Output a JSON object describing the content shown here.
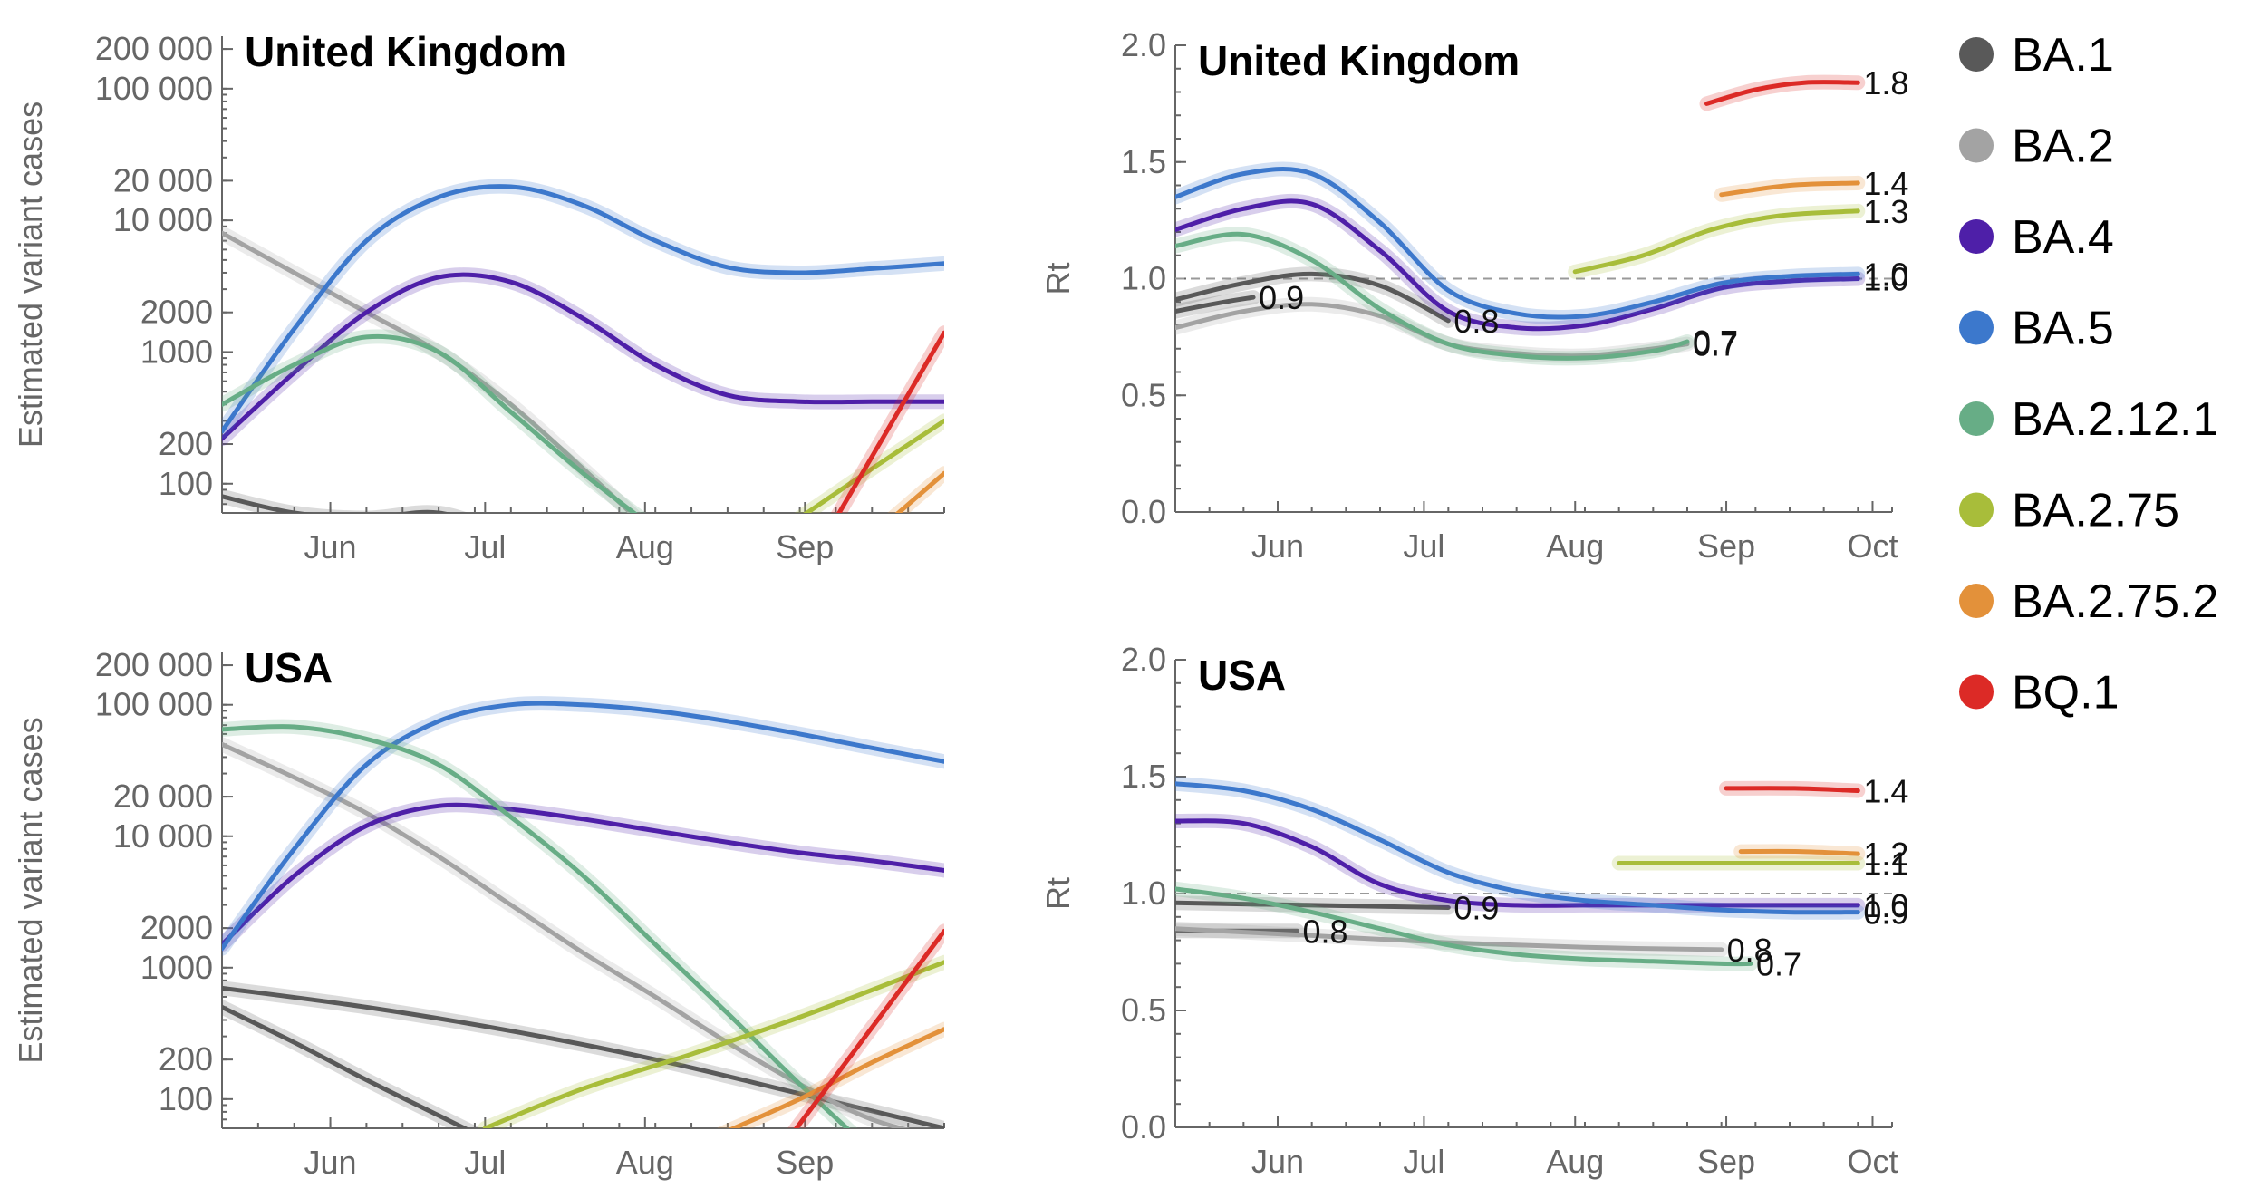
{
  "legend": [
    {
      "label": "BA.1",
      "color": "#595959"
    },
    {
      "label": "BA.2",
      "color": "#a3a3a3"
    },
    {
      "label": "BA.4",
      "color": "#4e1fa8"
    },
    {
      "label": "BA.5",
      "color": "#3c78cc"
    },
    {
      "label": "BA.2.12.1",
      "color": "#67ad86"
    },
    {
      "label": "BA.2.75",
      "color": "#a8bd3a"
    },
    {
      "label": "BA.2.75.2",
      "color": "#e3913a"
    },
    {
      "label": "BQ.1",
      "color": "#dc2a26"
    }
  ],
  "chart_data": [
    {
      "type": "line",
      "panel": "uk-cases",
      "title": "United Kingdom",
      "ylabel": "Estimated variant cases",
      "xlabel": "",
      "y_scale": "log",
      "ylim": [
        60,
        250000
      ],
      "xlim": [
        "2022-05-11",
        "2022-09-28"
      ],
      "x_ticks": [
        {
          "label": "Jun",
          "date": "2022-06-01"
        },
        {
          "label": "Jul",
          "date": "2022-07-01"
        },
        {
          "label": "Aug",
          "date": "2022-08-01"
        },
        {
          "label": "Sep",
          "date": "2022-09-01"
        }
      ],
      "y_ticks": [
        {
          "label": "100",
          "value": 100
        },
        {
          "label": "200",
          "value": 200
        },
        {
          "label": "1000",
          "value": 1000
        },
        {
          "label": "2000",
          "value": 2000
        },
        {
          "label": "10 000",
          "value": 10000
        },
        {
          "label": "20 000",
          "value": 20000
        },
        {
          "label": "100 000",
          "value": 100000
        },
        {
          "label": "200 000",
          "value": 200000
        }
      ],
      "series": [
        {
          "name": "BA.1",
          "x": [
            "2022-05-11",
            "2022-05-25",
            "2022-06-08",
            "2022-06-22",
            "2022-07-06"
          ],
          "y": [
            80,
            60,
            55,
            60,
            40
          ]
        },
        {
          "name": "BA.2",
          "x": [
            "2022-05-11",
            "2022-05-25",
            "2022-06-08",
            "2022-06-22",
            "2022-07-06",
            "2022-07-20",
            "2022-08-03"
          ],
          "y": [
            8000,
            4000,
            2000,
            1000,
            400,
            130,
            40
          ]
        },
        {
          "name": "BA.4",
          "x": [
            "2022-05-11",
            "2022-05-25",
            "2022-06-08",
            "2022-06-22",
            "2022-07-06",
            "2022-07-20",
            "2022-08-03",
            "2022-08-17",
            "2022-08-31",
            "2022-09-14",
            "2022-09-28"
          ],
          "y": [
            220,
            700,
            2000,
            3700,
            3400,
            1800,
            800,
            470,
            420,
            420,
            420
          ]
        },
        {
          "name": "BA.5",
          "x": [
            "2022-05-11",
            "2022-05-25",
            "2022-06-08",
            "2022-06-22",
            "2022-07-06",
            "2022-07-20",
            "2022-08-03",
            "2022-08-17",
            "2022-08-31",
            "2022-09-14",
            "2022-09-28"
          ],
          "y": [
            250,
            1500,
            7000,
            15000,
            18000,
            13000,
            7000,
            4400,
            4000,
            4300,
            4700
          ]
        },
        {
          "name": "BA.2.12.1",
          "x": [
            "2022-05-11",
            "2022-05-25",
            "2022-06-08",
            "2022-06-22",
            "2022-07-06",
            "2022-07-20",
            "2022-08-03"
          ],
          "y": [
            400,
            800,
            1300,
            1000,
            350,
            120,
            45
          ]
        },
        {
          "name": "BA.2.75",
          "x": [
            "2022-08-31",
            "2022-09-14",
            "2022-09-28"
          ],
          "y": [
            55,
            130,
            300
          ]
        },
        {
          "name": "BA.2.75.2",
          "x": [
            "2022-09-18",
            "2022-09-28"
          ],
          "y": [
            55,
            120
          ]
        },
        {
          "name": "BQ.1",
          "x": [
            "2022-09-05",
            "2022-09-28"
          ],
          "y": [
            40,
            1400
          ]
        }
      ]
    },
    {
      "type": "line",
      "panel": "uk-rt",
      "title": "United Kingdom",
      "ylabel": "Rt",
      "xlabel": "",
      "ylim": [
        0,
        2
      ],
      "xlim": [
        "2022-05-11",
        "2022-10-05"
      ],
      "x_ticks": [
        {
          "label": "Jun",
          "date": "2022-06-01"
        },
        {
          "label": "Jul",
          "date": "2022-07-01"
        },
        {
          "label": "Aug",
          "date": "2022-08-01"
        },
        {
          "label": "Sep",
          "date": "2022-09-01"
        },
        {
          "label": "Oct",
          "date": "2022-10-01"
        }
      ],
      "y_ticks": [
        {
          "label": "0.0",
          "value": 0
        },
        {
          "label": "0.5",
          "value": 0.5
        },
        {
          "label": "1.0",
          "value": 1
        },
        {
          "label": "1.5",
          "value": 1.5
        },
        {
          "label": "2.0",
          "value": 2
        }
      ],
      "reference_line": 1.0,
      "series": [
        {
          "name": "BA.1",
          "end_label": "0.9",
          "x": [
            "2022-05-11",
            "2022-05-21",
            "2022-05-27"
          ],
          "y": [
            0.86,
            0.9,
            0.92
          ]
        },
        {
          "name": "BA.1",
          "end_label": "0.8",
          "x": [
            "2022-05-11",
            "2022-05-25",
            "2022-06-08",
            "2022-06-22",
            "2022-07-06"
          ],
          "y": [
            0.91,
            0.98,
            1.02,
            0.97,
            0.82
          ]
        },
        {
          "name": "BA.2",
          "end_label": "0.7",
          "x": [
            "2022-05-11",
            "2022-05-25",
            "2022-06-08",
            "2022-06-22",
            "2022-07-06",
            "2022-07-20",
            "2022-08-03",
            "2022-08-17",
            "2022-08-24"
          ],
          "y": [
            0.79,
            0.86,
            0.89,
            0.84,
            0.72,
            0.68,
            0.67,
            0.7,
            0.72
          ]
        },
        {
          "name": "BA.4",
          "end_label": "1.0",
          "x": [
            "2022-05-11",
            "2022-05-25",
            "2022-06-08",
            "2022-06-22",
            "2022-07-06",
            "2022-07-20",
            "2022-08-03",
            "2022-08-17",
            "2022-08-31",
            "2022-09-14",
            "2022-09-28"
          ],
          "y": [
            1.21,
            1.3,
            1.32,
            1.12,
            0.86,
            0.79,
            0.8,
            0.87,
            0.96,
            0.99,
            1.0
          ]
        },
        {
          "name": "BA.5",
          "end_label": "1.0",
          "x": [
            "2022-05-11",
            "2022-05-25",
            "2022-06-08",
            "2022-06-22",
            "2022-07-06",
            "2022-07-20",
            "2022-08-03",
            "2022-08-17",
            "2022-08-31",
            "2022-09-14",
            "2022-09-28"
          ],
          "y": [
            1.35,
            1.45,
            1.45,
            1.24,
            0.95,
            0.85,
            0.84,
            0.9,
            0.98,
            1.01,
            1.02
          ]
        },
        {
          "name": "BA.2.12.1",
          "end_label": "0.7",
          "x": [
            "2022-05-11",
            "2022-05-25",
            "2022-06-08",
            "2022-06-22",
            "2022-07-06",
            "2022-07-20",
            "2022-08-03",
            "2022-08-17",
            "2022-08-24"
          ],
          "y": [
            1.14,
            1.19,
            1.08,
            0.87,
            0.72,
            0.67,
            0.66,
            0.69,
            0.73
          ]
        },
        {
          "name": "BA.2.75",
          "end_label": "1.3",
          "x": [
            "2022-08-01",
            "2022-08-15",
            "2022-08-29",
            "2022-09-12",
            "2022-09-28"
          ],
          "y": [
            1.03,
            1.1,
            1.21,
            1.27,
            1.29
          ]
        },
        {
          "name": "BA.2.75.2",
          "end_label": "1.4",
          "x": [
            "2022-08-31",
            "2022-09-14",
            "2022-09-28"
          ],
          "y": [
            1.36,
            1.4,
            1.41
          ]
        },
        {
          "name": "BQ.1",
          "end_label": "1.8",
          "x": [
            "2022-08-28",
            "2022-09-07",
            "2022-09-17",
            "2022-09-28"
          ],
          "y": [
            1.75,
            1.81,
            1.84,
            1.84
          ]
        }
      ]
    },
    {
      "type": "line",
      "panel": "usa-cases",
      "title": "USA",
      "ylabel": "Estimated variant cases",
      "xlabel": "",
      "y_scale": "log",
      "ylim": [
        60,
        250000
      ],
      "xlim": [
        "2022-05-11",
        "2022-09-28"
      ],
      "x_ticks": [
        {
          "label": "Jun",
          "date": "2022-06-01"
        },
        {
          "label": "Jul",
          "date": "2022-07-01"
        },
        {
          "label": "Aug",
          "date": "2022-08-01"
        },
        {
          "label": "Sep",
          "date": "2022-09-01"
        }
      ],
      "y_ticks": [
        {
          "label": "100",
          "value": 100
        },
        {
          "label": "200",
          "value": 200
        },
        {
          "label": "1000",
          "value": 1000
        },
        {
          "label": "2000",
          "value": 2000
        },
        {
          "label": "10 000",
          "value": 10000
        },
        {
          "label": "20 000",
          "value": 20000
        },
        {
          "label": "100 000",
          "value": 100000
        },
        {
          "label": "200 000",
          "value": 200000
        }
      ],
      "series": [
        {
          "name": "BA.1",
          "x": [
            "2022-05-11",
            "2022-05-25",
            "2022-06-08",
            "2022-06-22",
            "2022-07-06"
          ],
          "y": [
            500,
            270,
            140,
            75,
            40
          ]
        },
        {
          "name": "BA.1",
          "x": [
            "2022-05-11",
            "2022-06-08",
            "2022-07-06",
            "2022-08-03",
            "2022-08-31",
            "2022-09-28"
          ],
          "y": [
            700,
            500,
            330,
            200,
            110,
            60
          ]
        },
        {
          "name": "BA.2",
          "x": [
            "2022-05-11",
            "2022-05-25",
            "2022-06-08",
            "2022-06-22",
            "2022-07-06",
            "2022-07-20",
            "2022-08-03",
            "2022-08-17",
            "2022-08-31",
            "2022-09-14",
            "2022-09-28"
          ],
          "y": [
            50000,
            28000,
            15000,
            7000,
            3000,
            1300,
            600,
            270,
            130,
            70,
            50
          ]
        },
        {
          "name": "BA.4",
          "x": [
            "2022-05-11",
            "2022-05-25",
            "2022-06-08",
            "2022-06-22",
            "2022-07-06",
            "2022-07-20",
            "2022-08-03",
            "2022-08-17",
            "2022-08-31",
            "2022-09-14",
            "2022-09-28"
          ],
          "y": [
            1500,
            5000,
            12000,
            17000,
            16000,
            13500,
            11000,
            9000,
            7500,
            6500,
            5500
          ]
        },
        {
          "name": "BA.5",
          "x": [
            "2022-05-11",
            "2022-05-25",
            "2022-06-08",
            "2022-06-22",
            "2022-07-06",
            "2022-07-20",
            "2022-08-03",
            "2022-08-17",
            "2022-08-31",
            "2022-09-14",
            "2022-09-28"
          ],
          "y": [
            1400,
            8000,
            35000,
            75000,
            100000,
            100000,
            90000,
            75000,
            60000,
            47000,
            37000
          ]
        },
        {
          "name": "BA.2.12.1",
          "x": [
            "2022-05-11",
            "2022-05-25",
            "2022-06-08",
            "2022-06-22",
            "2022-07-06",
            "2022-07-20",
            "2022-08-03",
            "2022-08-17",
            "2022-08-31",
            "2022-09-14"
          ],
          "y": [
            65000,
            68000,
            55000,
            35000,
            14000,
            5000,
            1500,
            450,
            130,
            40
          ]
        },
        {
          "name": "BA.2.75",
          "x": [
            "2022-07-01",
            "2022-07-20",
            "2022-08-10",
            "2022-08-31",
            "2022-09-28"
          ],
          "y": [
            60,
            120,
            220,
            420,
            1100
          ]
        },
        {
          "name": "BA.2.75.2",
          "x": [
            "2022-08-16",
            "2022-08-31",
            "2022-09-14",
            "2022-09-28"
          ],
          "y": [
            55,
            100,
            190,
            340
          ]
        },
        {
          "name": "BQ.1",
          "x": [
            "2022-08-27",
            "2022-09-28"
          ],
          "y": [
            40,
            1900
          ]
        }
      ]
    },
    {
      "type": "line",
      "panel": "usa-rt",
      "title": "USA",
      "ylabel": "Rt",
      "xlabel": "",
      "ylim": [
        0,
        2
      ],
      "xlim": [
        "2022-05-11",
        "2022-10-05"
      ],
      "x_ticks": [
        {
          "label": "Jun",
          "date": "2022-06-01"
        },
        {
          "label": "Jul",
          "date": "2022-07-01"
        },
        {
          "label": "Aug",
          "date": "2022-08-01"
        },
        {
          "label": "Sep",
          "date": "2022-09-01"
        },
        {
          "label": "Oct",
          "date": "2022-10-01"
        }
      ],
      "y_ticks": [
        {
          "label": "0.0",
          "value": 0
        },
        {
          "label": "0.5",
          "value": 0.5
        },
        {
          "label": "1.0",
          "value": 1
        },
        {
          "label": "1.5",
          "value": 1.5
        },
        {
          "label": "2.0",
          "value": 2
        }
      ],
      "reference_line": 1.0,
      "series": [
        {
          "name": "BA.1",
          "end_label": "0.8",
          "x": [
            "2022-05-11",
            "2022-05-25",
            "2022-06-05"
          ],
          "y": [
            0.84,
            0.84,
            0.84
          ]
        },
        {
          "name": "BA.1",
          "end_label": "0.9",
          "x": [
            "2022-05-11",
            "2022-06-08",
            "2022-07-06"
          ],
          "y": [
            0.96,
            0.95,
            0.94
          ]
        },
        {
          "name": "BA.2",
          "end_label": "0.8",
          "x": [
            "2022-05-11",
            "2022-06-08",
            "2022-07-06",
            "2022-08-03",
            "2022-08-31"
          ],
          "y": [
            0.85,
            0.82,
            0.79,
            0.77,
            0.76
          ]
        },
        {
          "name": "BA.4",
          "end_label": "1.0",
          "x": [
            "2022-05-11",
            "2022-05-25",
            "2022-06-08",
            "2022-06-22",
            "2022-07-06",
            "2022-07-20",
            "2022-08-03",
            "2022-08-17",
            "2022-08-31",
            "2022-09-14",
            "2022-09-28"
          ],
          "y": [
            1.31,
            1.3,
            1.2,
            1.04,
            0.97,
            0.95,
            0.95,
            0.95,
            0.95,
            0.95,
            0.95
          ]
        },
        {
          "name": "BA.5",
          "end_label": "0.9",
          "x": [
            "2022-05-11",
            "2022-05-25",
            "2022-06-08",
            "2022-06-22",
            "2022-07-06",
            "2022-07-20",
            "2022-08-03",
            "2022-08-17",
            "2022-08-31",
            "2022-09-14",
            "2022-09-28"
          ],
          "y": [
            1.47,
            1.44,
            1.36,
            1.23,
            1.09,
            1.01,
            0.97,
            0.95,
            0.93,
            0.92,
            0.92
          ]
        },
        {
          "name": "BA.2.12.1",
          "end_label": "0.7",
          "x": [
            "2022-05-11",
            "2022-05-25",
            "2022-06-08",
            "2022-06-22",
            "2022-07-06",
            "2022-07-20",
            "2022-08-03",
            "2022-08-17",
            "2022-08-31",
            "2022-09-06"
          ],
          "y": [
            1.02,
            0.98,
            0.92,
            0.85,
            0.78,
            0.74,
            0.72,
            0.71,
            0.7,
            0.7
          ]
        },
        {
          "name": "BA.2.75",
          "end_label": "1.1",
          "x": [
            "2022-08-10",
            "2022-08-31",
            "2022-09-28"
          ],
          "y": [
            1.13,
            1.13,
            1.13
          ]
        },
        {
          "name": "BA.2.75.2",
          "end_label": "1.2",
          "x": [
            "2022-09-04",
            "2022-09-16",
            "2022-09-28"
          ],
          "y": [
            1.18,
            1.18,
            1.17
          ]
        },
        {
          "name": "BQ.1",
          "end_label": "1.4",
          "x": [
            "2022-09-01",
            "2022-09-15",
            "2022-09-28"
          ],
          "y": [
            1.45,
            1.45,
            1.44
          ]
        }
      ]
    }
  ]
}
